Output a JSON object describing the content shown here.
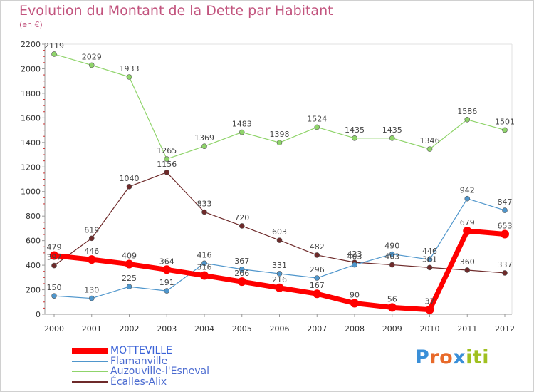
{
  "title": "Evolution du Montant de la Dette par Habitant",
  "subtitle": "(en €)",
  "logo": {
    "letters": [
      "P",
      "r",
      "o",
      "x",
      "i",
      "t",
      "i"
    ],
    "colors": [
      "#3a8fd8",
      "#e86a2a",
      "#e86a2a",
      "#3a8fd8",
      "#a0c020",
      "#a0c020",
      "#a0c020"
    ]
  },
  "chart_data": {
    "type": "line",
    "x": [
      "2000",
      "2001",
      "2002",
      "2003",
      "2004",
      "2005",
      "2006",
      "2007",
      "2008",
      "2009",
      "2010",
      "2011",
      "2012"
    ],
    "ylim": [
      0,
      2200
    ],
    "yticks": [
      "0",
      "200",
      "400",
      "600",
      "800",
      "1000",
      "1200",
      "1400",
      "1600",
      "1800",
      "2000",
      "2200"
    ],
    "grid": false,
    "legend": "bottom-left",
    "series": [
      {
        "name": "MOTTEVILLE",
        "color": "#ff0000",
        "values": [
          479,
          446,
          409,
          364,
          316,
          266,
          216,
          167,
          90,
          56,
          37,
          679,
          653
        ]
      },
      {
        "name": "Flamanville",
        "color": "#4f96cc",
        "values": [
          150,
          130,
          225,
          191,
          416,
          367,
          331,
          296,
          403,
          490,
          446,
          942,
          847
        ]
      },
      {
        "name": "Auzouville-l'Esneval",
        "color": "#8fd46a",
        "values": [
          2119,
          2029,
          1933,
          1265,
          1369,
          1483,
          1398,
          1524,
          1435,
          1435,
          1346,
          1586,
          1501
        ]
      },
      {
        "name": "Écalles-Alix",
        "color": "#6e2a2a",
        "values": [
          397,
          619,
          1040,
          1156,
          833,
          720,
          603,
          482,
          423,
          403,
          381,
          360,
          337
        ]
      }
    ]
  }
}
